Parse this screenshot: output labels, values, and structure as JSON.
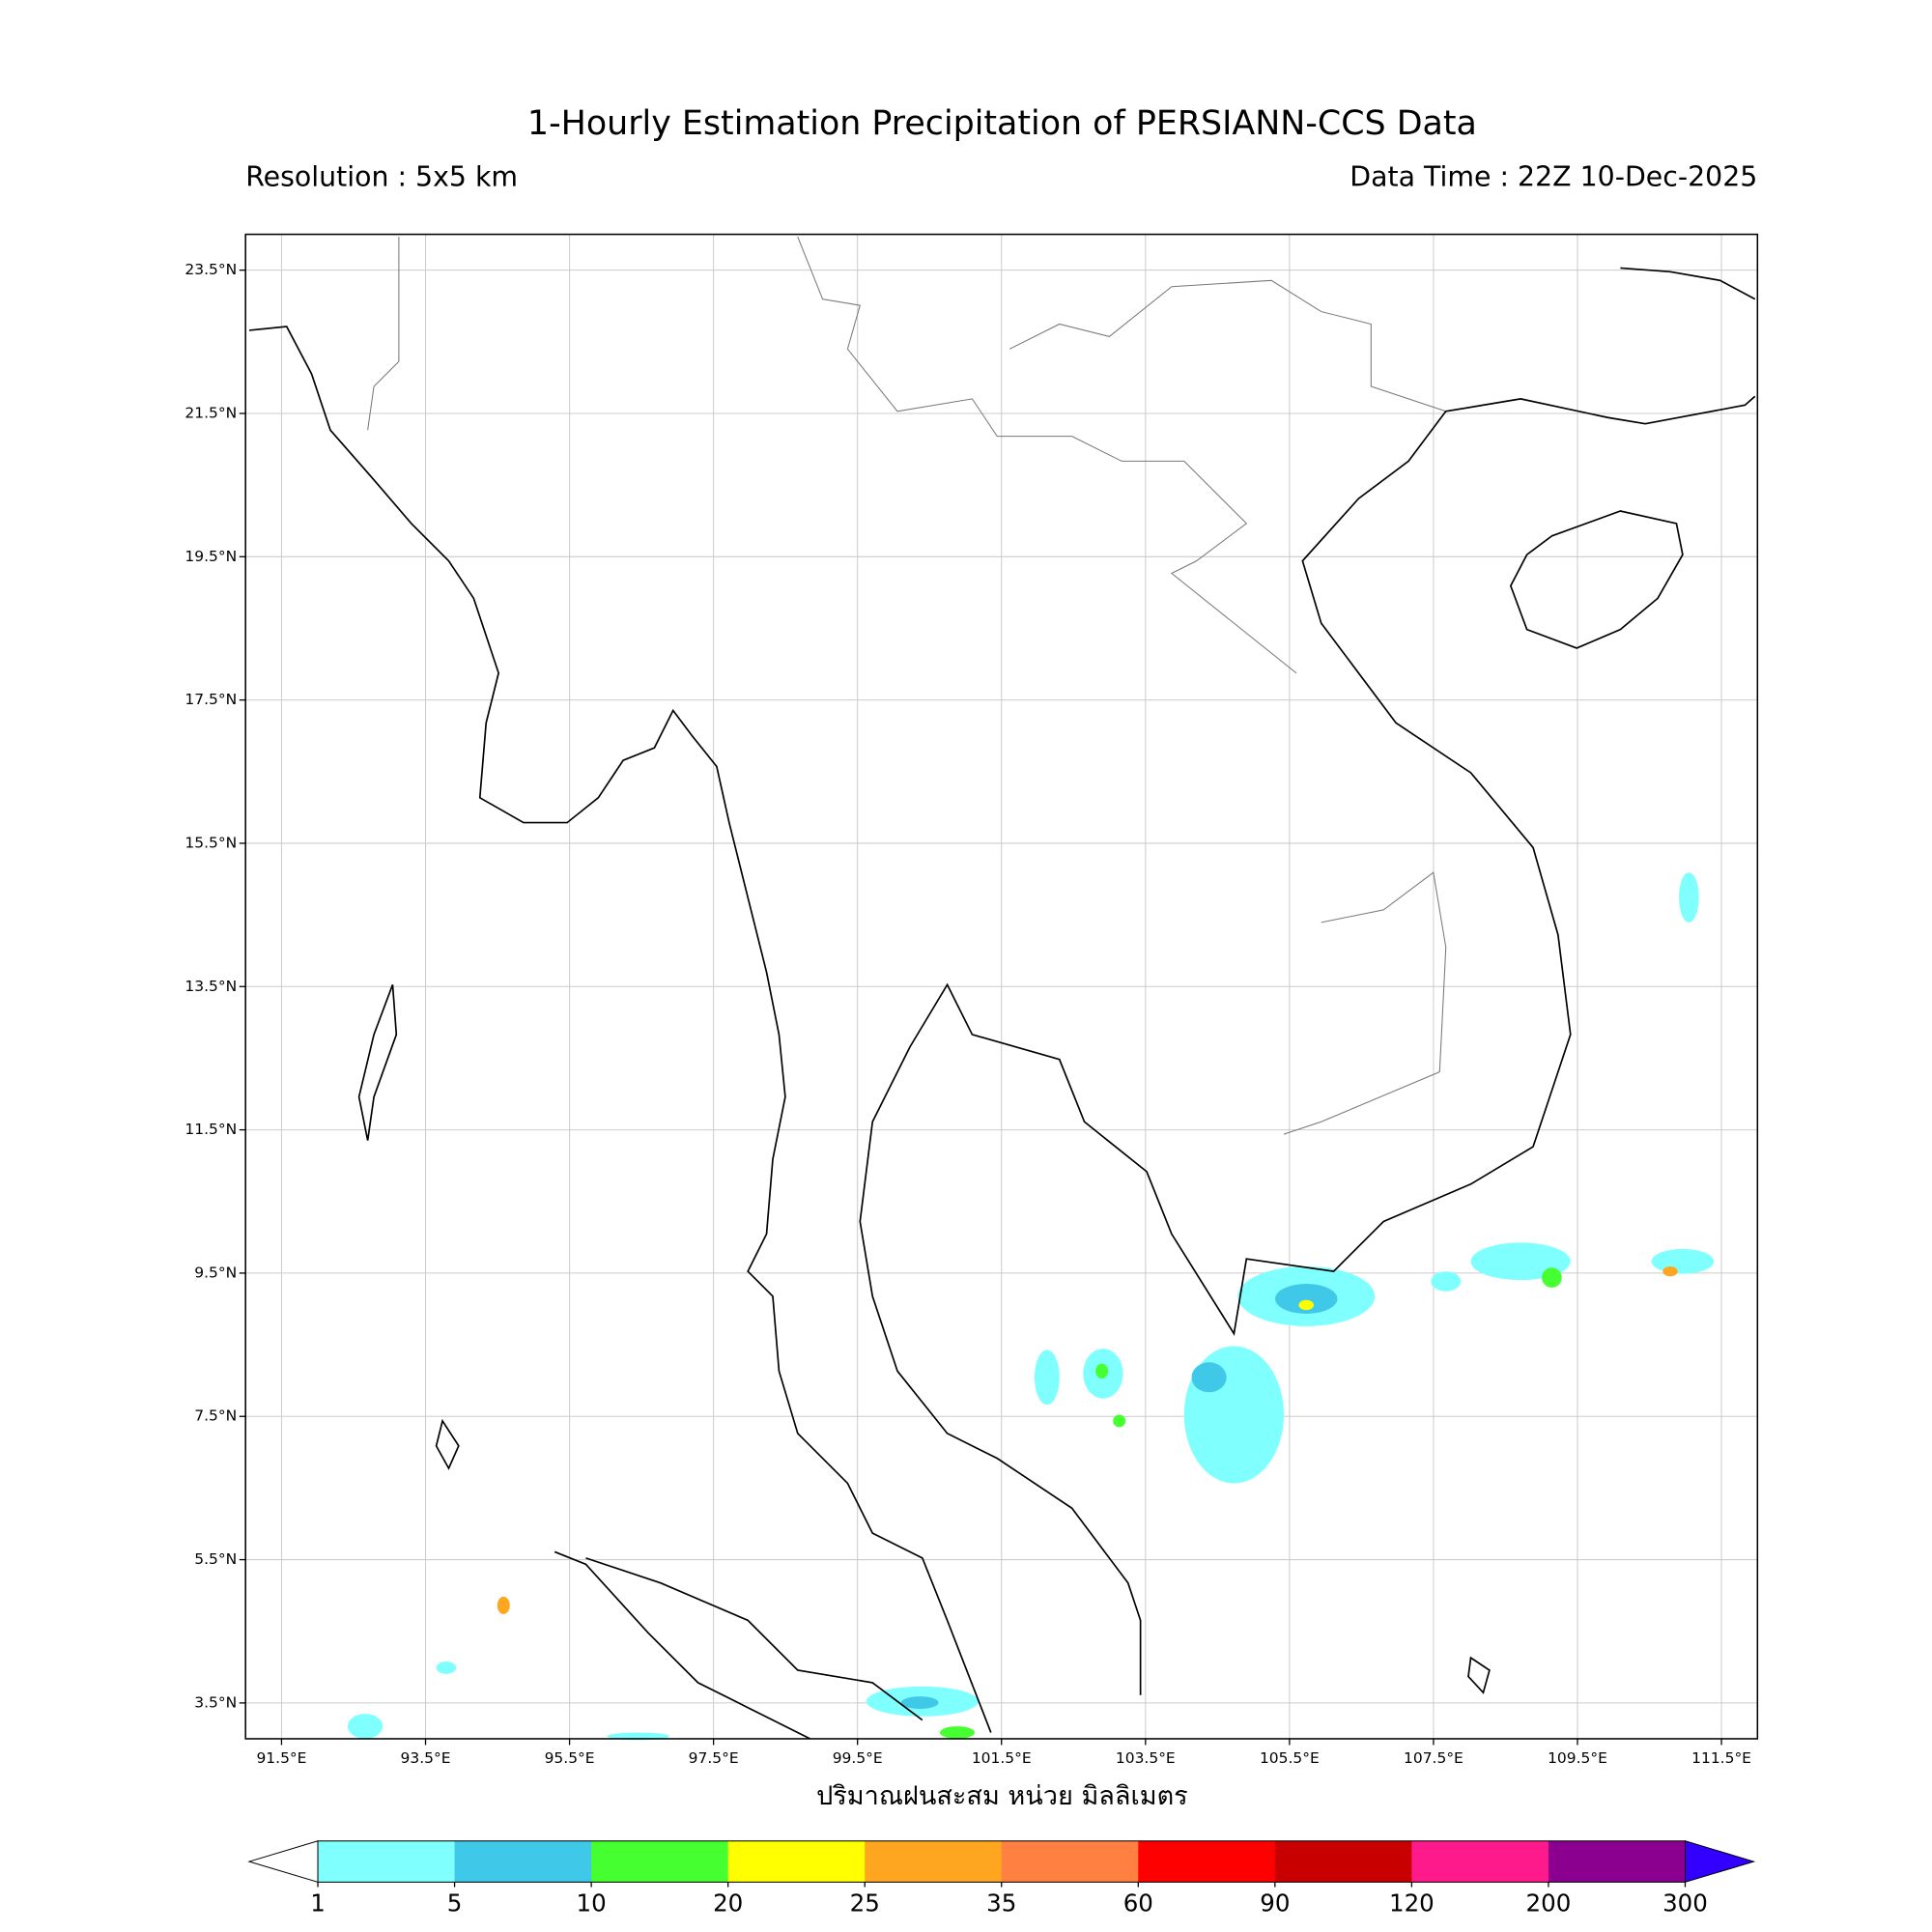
{
  "title": "1-Hourly Estimation Precipitation of PERSIANN-CCS Data",
  "subtitle_left": "Resolution : 5x5 km",
  "subtitle_right": "Data Time : 22Z 10-Dec-2025",
  "map": {
    "xlim": [
      91,
      112
    ],
    "ylim": [
      3,
      24
    ],
    "grid": true,
    "xticks": [
      {
        "value": 91.5,
        "label": "91.5°E"
      },
      {
        "value": 93.5,
        "label": "93.5°E"
      },
      {
        "value": 95.5,
        "label": "95.5°E"
      },
      {
        "value": 97.5,
        "label": "97.5°E"
      },
      {
        "value": 99.5,
        "label": "99.5°E"
      },
      {
        "value": 101.5,
        "label": "101.5°E"
      },
      {
        "value": 103.5,
        "label": "103.5°E"
      },
      {
        "value": 105.5,
        "label": "105.5°E"
      },
      {
        "value": 107.5,
        "label": "107.5°E"
      },
      {
        "value": 109.5,
        "label": "109.5°E"
      },
      {
        "value": 111.5,
        "label": "111.5°E"
      }
    ],
    "yticks": [
      {
        "value": 23.5,
        "label": "23.5°N"
      },
      {
        "value": 21.5,
        "label": "21.5°N"
      },
      {
        "value": 19.5,
        "label": "19.5°N"
      },
      {
        "value": 17.5,
        "label": "17.5°N"
      },
      {
        "value": 15.5,
        "label": "15.5°N"
      },
      {
        "value": 13.5,
        "label": "13.5°N"
      },
      {
        "value": 11.5,
        "label": "11.5°N"
      },
      {
        "value": 9.5,
        "label": "9.5°N"
      },
      {
        "value": 7.5,
        "label": "7.5°N"
      },
      {
        "value": 5.5,
        "label": "5.5°N"
      },
      {
        "value": 3.5,
        "label": "3.5°N"
      }
    ]
  },
  "xlabel": "ปริมาณฝนสะสม หน่วย มิลลิเมตร",
  "colorbar": {
    "levels": [
      1,
      5,
      10,
      20,
      25,
      35,
      60,
      90,
      120,
      200,
      300
    ],
    "colors": [
      "#80ffff",
      "#40c8e8",
      "#45ff30",
      "#ffff00",
      "#ffa620",
      "#ff8040",
      "#ff0000",
      "#c80000",
      "#ff1a8c",
      "#8c0090"
    ],
    "under_color": "#ffffff",
    "over_color": "#3300ff"
  }
}
